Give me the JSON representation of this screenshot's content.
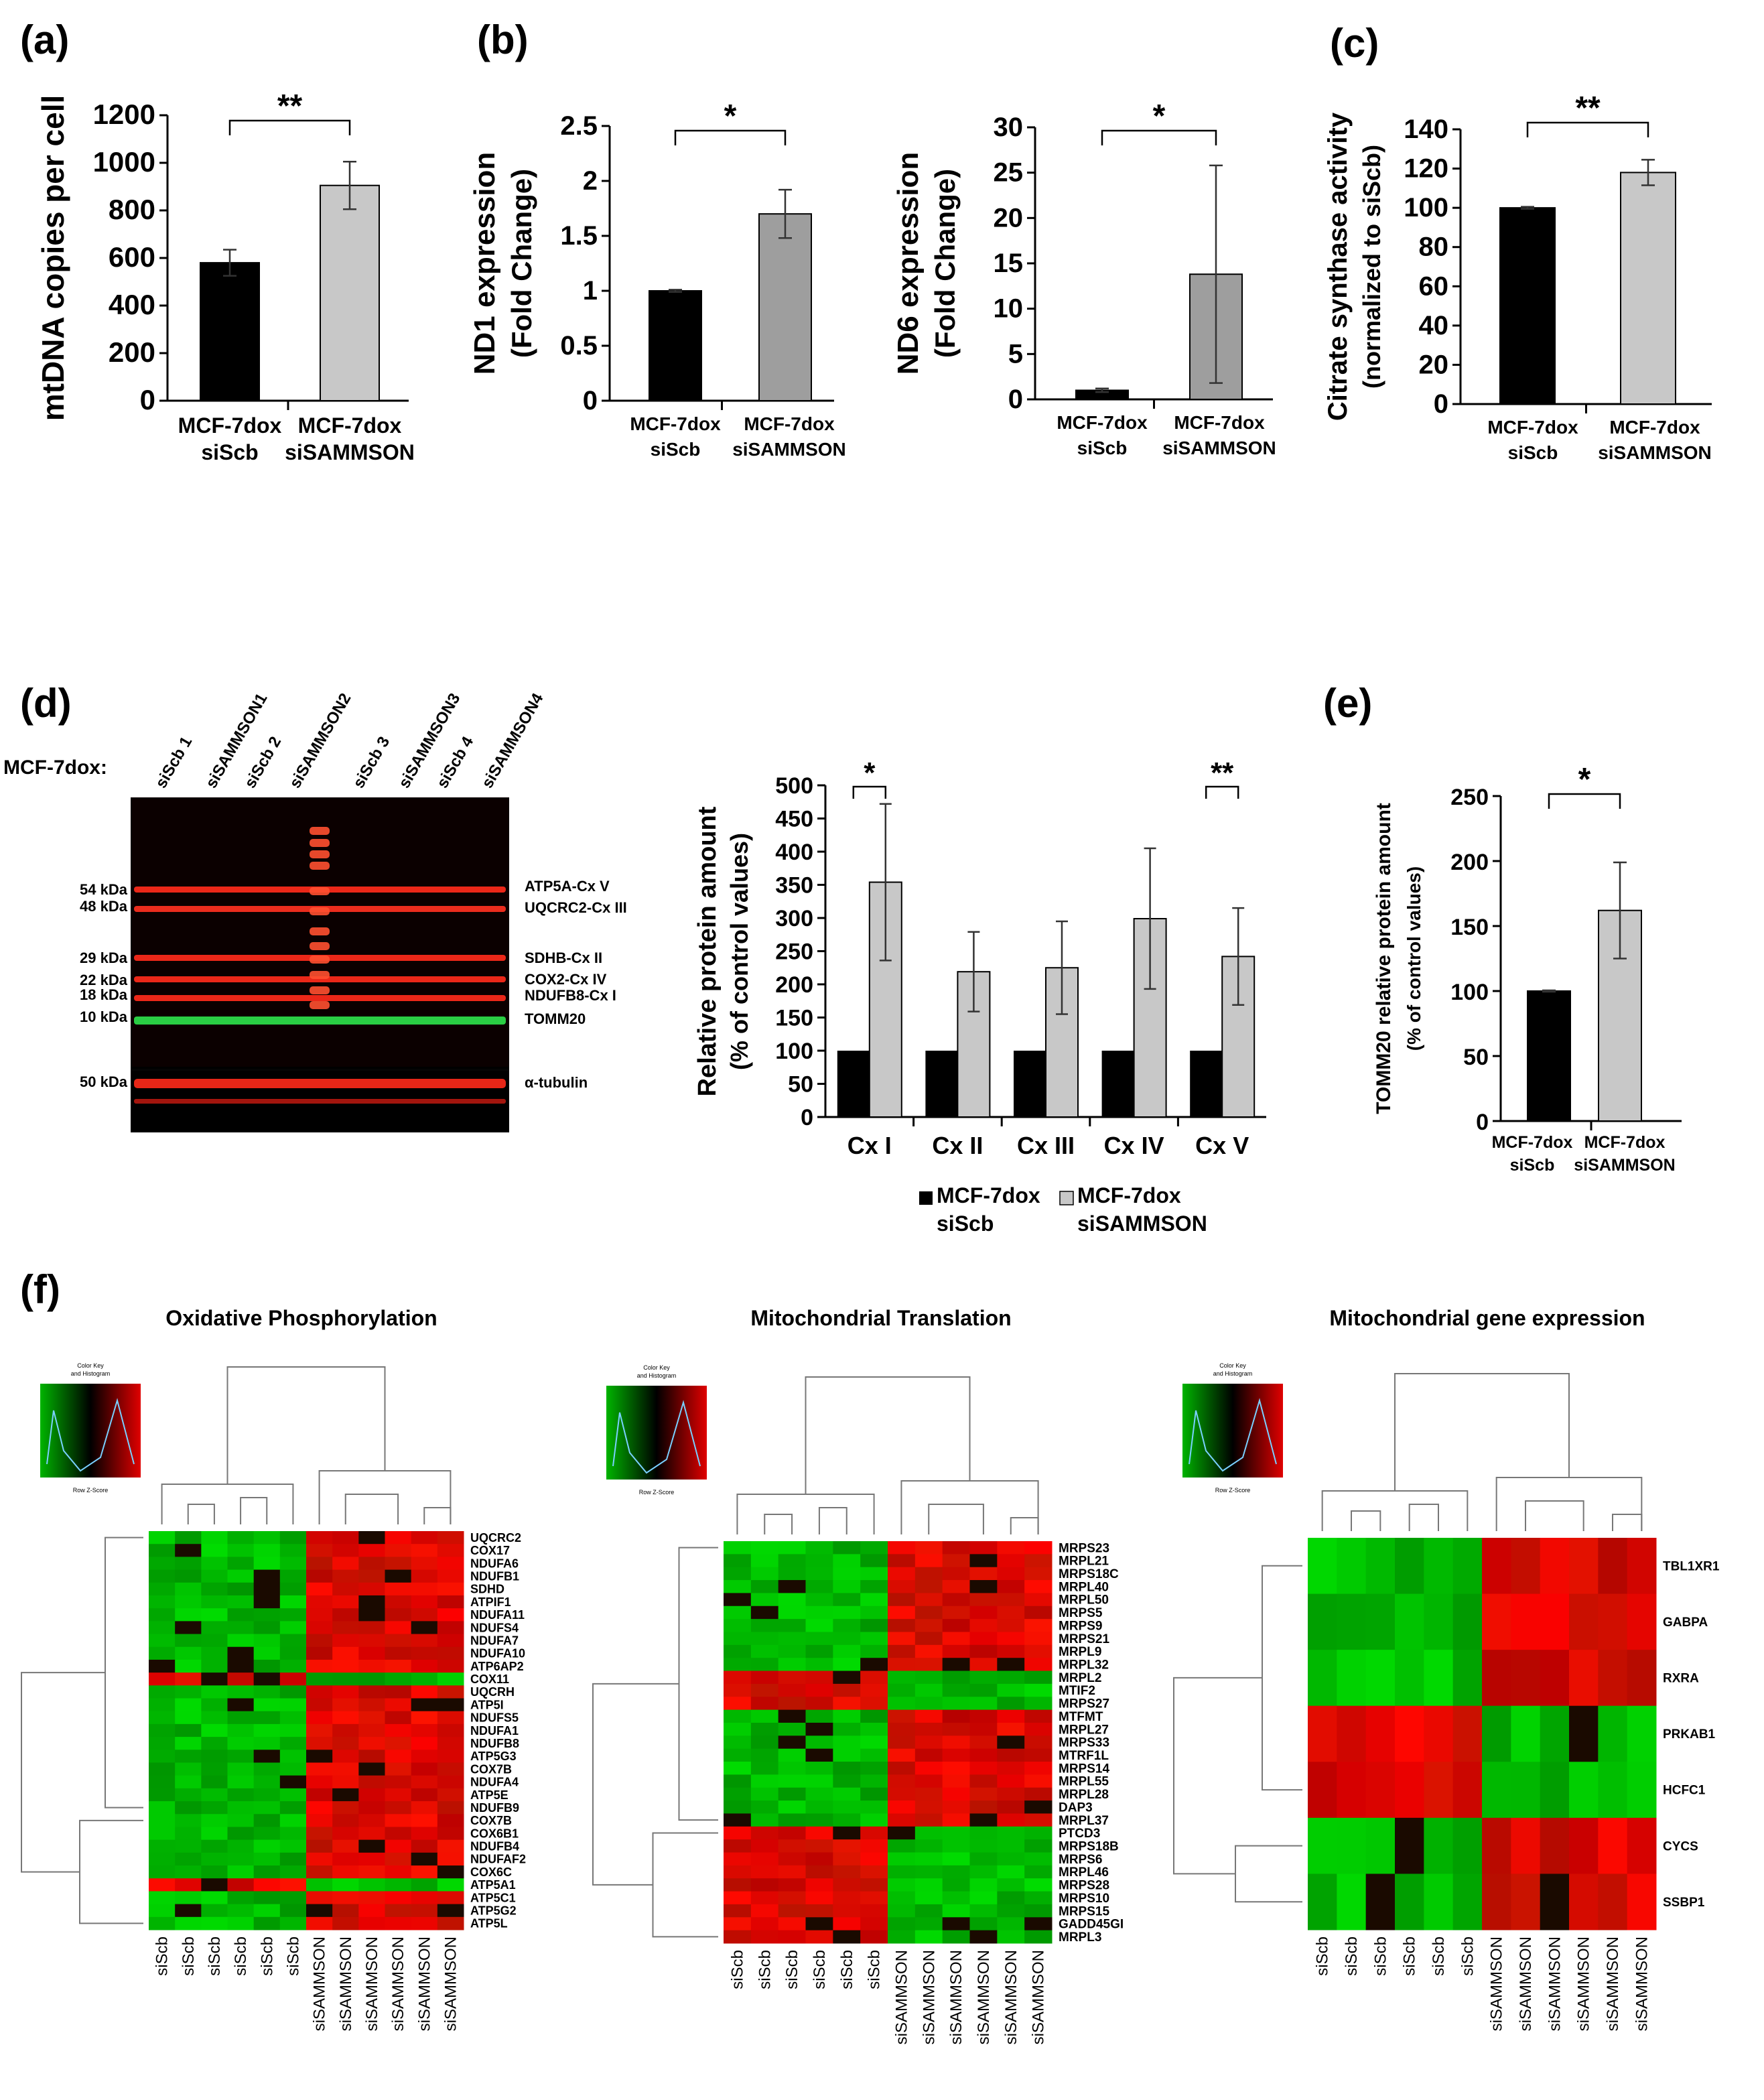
{
  "labels": {
    "panel_a": "(a)",
    "panel_b": "(b)",
    "panel_c": "(c)",
    "panel_d": "(d)",
    "panel_e": "(e)",
    "panel_f": "(f)",
    "mcf_prefix": "MCF-7dox:",
    "color_key": "Color Key",
    "color_key_sub": "and Histogram",
    "row_z": "Row Z-Score"
  },
  "colors": {
    "black_bar": "#000000",
    "grey_dark": "#9e9e9e",
    "grey_light": "#c8c8c8",
    "heat_red": "#e00000",
    "heat_green": "#00b400"
  },
  "western": {
    "lanes": [
      "siScb 1",
      "siSAMMSON1",
      "siScb 2",
      "siSAMMSON2",
      "siScb 3",
      "siSAMMSON3",
      "siScb 4",
      "siSAMMSON4"
    ],
    "kda": [
      "54 kDa",
      "48 kDa",
      "29 kDa",
      "22 kDa",
      "18 kDa",
      "10 kDa"
    ],
    "kda_tubulin": "50 kDa",
    "bands": [
      "ATP5A-Cx V",
      "UQCRC2-Cx III",
      "SDHB-Cx II",
      "COX2-Cx IV",
      "NDUFB8-Cx I",
      "TOMM20"
    ],
    "tubulin": "α-tubulin"
  },
  "chart_data": [
    {
      "id": "a",
      "type": "bar",
      "ylabel": "mtDNA copies per cell",
      "categories": [
        [
          "MCF-7dox",
          "siScb"
        ],
        [
          "MCF-7dox",
          "siSAMMSON"
        ]
      ],
      "values": [
        580,
        905
      ],
      "errors": [
        55,
        100
      ],
      "yticks": [
        0,
        200,
        400,
        600,
        800,
        1000,
        1200
      ],
      "ylim": [
        0,
        1200
      ],
      "significance": "**"
    },
    {
      "id": "b1",
      "type": "bar",
      "ylabel": [
        "ND1 expression",
        "(Fold Change)"
      ],
      "categories": [
        [
          "MCF-7dox",
          "siScb"
        ],
        [
          "MCF-7dox",
          "siSAMMSON"
        ]
      ],
      "values": [
        1.0,
        1.7
      ],
      "errors": [
        0.01,
        0.22
      ],
      "yticks": [
        0,
        0.5,
        1,
        1.5,
        2,
        2.5
      ],
      "yticklabels": [
        "0",
        "0.5",
        "1",
        "1.5",
        "2",
        "2.5"
      ],
      "ylim": [
        0,
        2.5
      ],
      "significance": "*"
    },
    {
      "id": "b2",
      "type": "bar",
      "ylabel": [
        "ND6 expression",
        "(Fold Change)"
      ],
      "categories": [
        [
          "MCF-7dox",
          "siScb"
        ],
        [
          "MCF-7dox",
          "siSAMMSON"
        ]
      ],
      "values": [
        1.0,
        13.8
      ],
      "errors": [
        0.2,
        12.0
      ],
      "yticks": [
        0,
        5,
        10,
        15,
        20,
        25,
        30
      ],
      "ylim": [
        0,
        30
      ],
      "significance": "*"
    },
    {
      "id": "c",
      "type": "bar",
      "ylabel": [
        "Citrate synthase activity",
        "(normalized to siScb)"
      ],
      "categories": [
        [
          "MCF-7dox",
          "siScb"
        ],
        [
          "MCF-7dox",
          "siSAMMSON"
        ]
      ],
      "values": [
        100,
        118
      ],
      "errors": [
        0.5,
        6.5
      ],
      "yticks": [
        0,
        20,
        40,
        60,
        80,
        100,
        120,
        140
      ],
      "ylim": [
        0,
        140
      ],
      "significance": "**"
    },
    {
      "id": "d",
      "type": "bar",
      "ylabel": [
        "Relative protein amount",
        "(% of control values)"
      ],
      "categories": [
        "Cx I",
        "Cx II",
        "Cx III",
        "Cx IV",
        "Cx V"
      ],
      "series": [
        {
          "name": "MCF-7dox siScb",
          "legend": [
            "MCF-7dox",
            "siScb"
          ],
          "values": [
            100,
            100,
            100,
            100,
            100
          ]
        },
        {
          "name": "MCF-7dox siSAMMSON",
          "legend": [
            "MCF-7dox",
            "siSAMMSON"
          ],
          "values": [
            354,
            219,
            225,
            299,
            242
          ],
          "errors": [
            118,
            60,
            70,
            106,
            73
          ]
        }
      ],
      "yticks": [
        0,
        50,
        100,
        150,
        200,
        250,
        300,
        350,
        400,
        450,
        500
      ],
      "ylim": [
        0,
        500
      ],
      "significance": [
        {
          "category": "Cx I",
          "mark": "*"
        },
        {
          "category": "Cx V",
          "mark": "**"
        }
      ]
    },
    {
      "id": "e",
      "type": "bar",
      "ylabel": [
        "TOMM20 relative protein amount",
        "(% of control values)"
      ],
      "categories": [
        [
          "MCF-7dox",
          "siScb"
        ],
        [
          "MCF-7dox",
          "siSAMMSON"
        ]
      ],
      "values": [
        100,
        162
      ],
      "errors": [
        0.5,
        37
      ],
      "yticks": [
        0,
        50,
        100,
        150,
        200,
        250
      ],
      "ylim": [
        0,
        250
      ],
      "significance": "*"
    },
    {
      "id": "f1",
      "type": "heatmap",
      "title": "Oxidative  Phosphorylation",
      "columns": [
        "siScb",
        "siScb",
        "siScb",
        "siScb",
        "siScb",
        "siScb",
        "siSAMMSON",
        "siSAMMSON",
        "siSAMMSON",
        "siSAMMSON",
        "siSAMMSON",
        "siSAMMSON"
      ],
      "rows": [
        "UQCRC2",
        "COX17",
        "NDUFA6",
        "NDUFB1",
        "SDHD",
        "ATPIF1",
        "NDUFA11",
        "NDUFS4",
        "NDUFA7",
        "NDUFA10",
        "ATP6AP2",
        "COX11",
        "UQCRH",
        "ATP5I",
        "NDUFS5",
        "NDUFA1",
        "NDUFB8",
        "ATP5G3",
        "COX7B",
        "NDUFA4",
        "ATP5E",
        "NDUFB9",
        "COX7B",
        "COX6B1",
        "NDUFB4",
        "NDUFAF2",
        "COX6C",
        "ATP5A1",
        "ATP5C1",
        "ATP5G2",
        "ATP5L"
      ],
      "inverted_rows": [
        11,
        27
      ]
    },
    {
      "id": "f2",
      "type": "heatmap",
      "title": "Mitochondrial  Translation",
      "columns": [
        "siScb",
        "siScb",
        "siScb",
        "siScb",
        "siScb",
        "siScb",
        "siSAMMSON",
        "siSAMMSON",
        "siSAMMSON",
        "siSAMMSON",
        "siSAMMSON",
        "siSAMMSON"
      ],
      "rows": [
        "MRPS23",
        "MRPL21",
        "MRPS18C",
        "MRPL40",
        "MRPL50",
        "MRPS5",
        "MRPS9",
        "MRPS21",
        "MRPL9",
        "MRPL32",
        "MRPL2",
        "MTIF2",
        "MRPS27",
        "MTFMT",
        "MRPL27",
        "MRPS33",
        "MTRF1L",
        "MRPS14",
        "MRPL55",
        "MRPL28",
        "DAP3",
        "MRPL37",
        "PTCD3",
        "MRPS18B",
        "MRPS6",
        "MRPL46",
        "MRPS28",
        "MRPS10",
        "MRPS15",
        "GADD45GI",
        "MRPL3"
      ],
      "inverted_rows": [
        10,
        11,
        12,
        22,
        23,
        24,
        25,
        26,
        27,
        28,
        29,
        30
      ]
    },
    {
      "id": "f3",
      "type": "heatmap",
      "title": "Mitochondrial  gene expression",
      "columns": [
        "siScb",
        "siScb",
        "siScb",
        "siScb",
        "siScb",
        "siScb",
        "siSAMMSON",
        "siSAMMSON",
        "siSAMMSON",
        "siSAMMSON",
        "siSAMMSON",
        "siSAMMSON"
      ],
      "rows": [
        "TBL1XR1",
        "GABPA",
        "RXRA",
        "PRKAB1",
        "HCFC1",
        "CYCS",
        "SSBP1"
      ],
      "inverted_rows": [
        3,
        4
      ]
    }
  ]
}
